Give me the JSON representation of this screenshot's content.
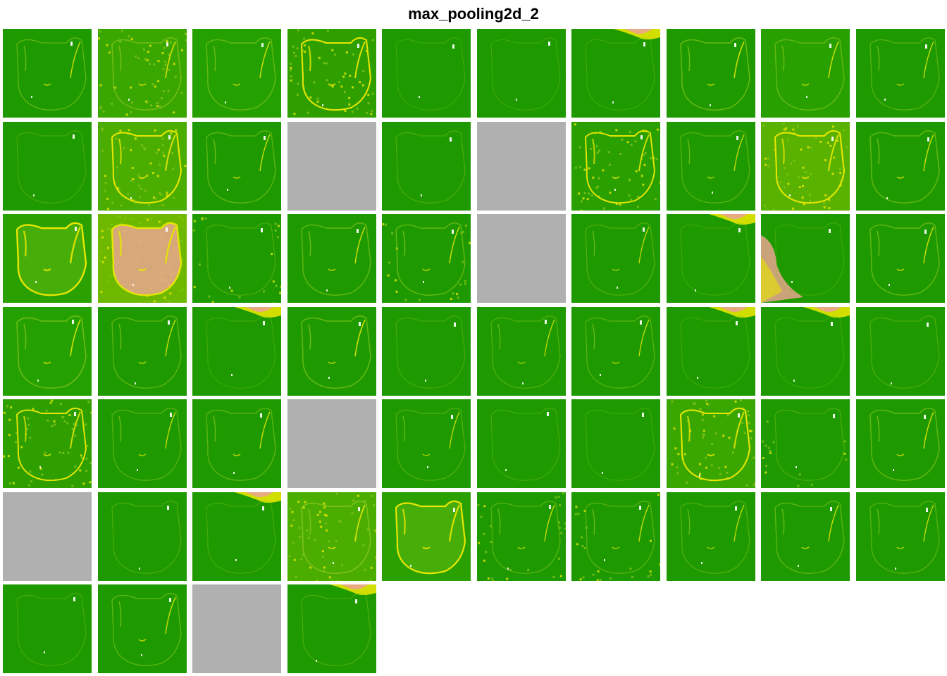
{
  "title": "max_pooling2d_2",
  "grid": {
    "columns": 10,
    "rows": 7,
    "count": 64
  },
  "colormap": {
    "base": "#1e9a00",
    "low": "#2aa100",
    "mid": "#7fc31a",
    "high": "#e6e600",
    "peak": "#eaa58f",
    "dead": "#b0b0b0"
  },
  "feature_maps": [
    {
      "style": "edge",
      "bg": "#1e9a00",
      "outline": 0.35
    },
    {
      "style": "texture",
      "bg": "#3aa600",
      "outline": 0.5
    },
    {
      "style": "edge",
      "bg": "#24a000",
      "outline": 0.4
    },
    {
      "style": "texture",
      "bg": "#2f9f00",
      "outline": 0.8
    },
    {
      "style": "blank",
      "bg": "#1e9a00",
      "outline": 0.1
    },
    {
      "style": "blank",
      "bg": "#1e9a00",
      "outline": 0.1
    },
    {
      "style": "topblob",
      "bg": "#1e9a00",
      "outline": 0.1
    },
    {
      "style": "edge",
      "bg": "#1e9a00",
      "outline": 0.45
    },
    {
      "style": "edge",
      "bg": "#27a000",
      "outline": 0.4
    },
    {
      "style": "edge",
      "bg": "#1e9a00",
      "outline": 0.3
    },
    {
      "style": "blank",
      "bg": "#1e9a00",
      "outline": 0.15
    },
    {
      "style": "texture",
      "bg": "#4aad00",
      "outline": 0.8
    },
    {
      "style": "edge",
      "bg": "#1e9a00",
      "outline": 0.35
    },
    {
      "style": "dead"
    },
    {
      "style": "blank",
      "bg": "#1e9a00",
      "outline": 0.2
    },
    {
      "style": "dead"
    },
    {
      "style": "texture",
      "bg": "#2a9f00",
      "outline": 0.7
    },
    {
      "style": "edge",
      "bg": "#1e9a00",
      "outline": 0.3
    },
    {
      "style": "texture",
      "bg": "#5ab200",
      "outline": 0.8
    },
    {
      "style": "edge",
      "bg": "#1e9a00",
      "outline": 0.4
    },
    {
      "style": "face",
      "bg": "#2aa100",
      "outline": 1.0
    },
    {
      "style": "hotface",
      "bg": "#6eb900",
      "outline": 1.0
    },
    {
      "style": "bgtexture",
      "bg": "#1e9a00",
      "outline": 0.2
    },
    {
      "style": "edge",
      "bg": "#1e9a00",
      "outline": 0.4
    },
    {
      "style": "bgtexture",
      "bg": "#1e9a00",
      "outline": 0.4
    },
    {
      "style": "dead"
    },
    {
      "style": "edge",
      "bg": "#1e9a00",
      "outline": 0.25
    },
    {
      "style": "topblob",
      "bg": "#1e9a00",
      "outline": 0.1
    },
    {
      "style": "leftblob",
      "bg": "#1e9a00",
      "outline": 0.1
    },
    {
      "style": "edge",
      "bg": "#1e9a00",
      "outline": 0.4
    },
    {
      "style": "edge",
      "bg": "#24a000",
      "outline": 0.5
    },
    {
      "style": "edge",
      "bg": "#1e9a00",
      "outline": 0.35
    },
    {
      "style": "topblob",
      "bg": "#1e9a00",
      "outline": 0.1
    },
    {
      "style": "edge",
      "bg": "#1e9a00",
      "outline": 0.45
    },
    {
      "style": "blank",
      "bg": "#1e9a00",
      "outline": 0.15
    },
    {
      "style": "edge",
      "bg": "#1e9a00",
      "outline": 0.25
    },
    {
      "style": "edge",
      "bg": "#1e9a00",
      "outline": 0.3
    },
    {
      "style": "topblob",
      "bg": "#1e9a00",
      "outline": 0.1
    },
    {
      "style": "topblob",
      "bg": "#1e9a00",
      "outline": 0.1
    },
    {
      "style": "edge",
      "bg": "#1e9a00",
      "outline": 0.2
    },
    {
      "style": "texture",
      "bg": "#2f9f00",
      "outline": 0.7
    },
    {
      "style": "edge",
      "bg": "#1e9a00",
      "outline": 0.3
    },
    {
      "style": "edge",
      "bg": "#1e9a00",
      "outline": 0.35
    },
    {
      "style": "dead"
    },
    {
      "style": "edge",
      "bg": "#1e9a00",
      "outline": 0.25
    },
    {
      "style": "blank",
      "bg": "#1e9a00",
      "outline": 0.15
    },
    {
      "style": "blank",
      "bg": "#1e9a00",
      "outline": 0.1
    },
    {
      "style": "texture",
      "bg": "#3aa600",
      "outline": 0.8
    },
    {
      "style": "bgtexture",
      "bg": "#1e9a00",
      "outline": 0.2
    },
    {
      "style": "edge",
      "bg": "#1e9a00",
      "outline": 0.4
    },
    {
      "style": "dead"
    },
    {
      "style": "blank",
      "bg": "#1e9a00",
      "outline": 0.2
    },
    {
      "style": "topblob",
      "bg": "#1e9a00",
      "outline": 0.15
    },
    {
      "style": "texture",
      "bg": "#4aad00",
      "outline": 0.6
    },
    {
      "style": "face",
      "bg": "#2aa100",
      "outline": 0.9
    },
    {
      "style": "bgtexture",
      "bg": "#1e9a00",
      "outline": 0.3
    },
    {
      "style": "bgtexture",
      "bg": "#1e9a00",
      "outline": 0.3
    },
    {
      "style": "edge",
      "bg": "#1e9a00",
      "outline": 0.25
    },
    {
      "style": "edge",
      "bg": "#1e9a00",
      "outline": 0.35
    },
    {
      "style": "edge",
      "bg": "#1e9a00",
      "outline": 0.3
    },
    {
      "style": "blank",
      "bg": "#1e9a00",
      "outline": 0.15
    },
    {
      "style": "edge",
      "bg": "#1e9a00",
      "outline": 0.35
    },
    {
      "style": "dead"
    },
    {
      "style": "topblob",
      "bg": "#1e9a00",
      "outline": 0.2
    }
  ]
}
